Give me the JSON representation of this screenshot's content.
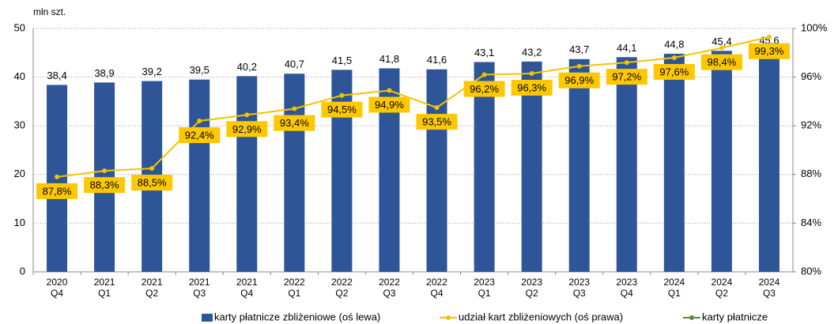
{
  "chart_data": {
    "type": "bar_line",
    "y_label": "mln szt.",
    "categories": [
      "2020 Q4",
      "2021 Q1",
      "2021 Q2",
      "2021 Q3",
      "2021 Q4",
      "2022 Q1",
      "2022 Q2",
      "2022 Q3",
      "2022 Q4",
      "2023 Q1",
      "2023 Q2",
      "2023 Q3",
      "2023 Q4",
      "2024 Q1",
      "2024 Q2",
      "2024 Q3"
    ],
    "ylim": [
      0,
      50
    ],
    "yticks": [
      0,
      10,
      20,
      30,
      40,
      50
    ],
    "y2lim": [
      80,
      100
    ],
    "y2ticks": [
      {
        "value": 80,
        "label": "80%"
      },
      {
        "value": 84,
        "label": "84%"
      },
      {
        "value": 88,
        "label": "88%"
      },
      {
        "value": 92,
        "label": "92%"
      },
      {
        "value": 96,
        "label": "96%"
      },
      {
        "value": 100,
        "label": "100%"
      }
    ],
    "grid": true,
    "series": [
      {
        "name": "karty płatnicze zbliżeniowe (oś lewa)",
        "color": "#2e5597",
        "kind": "bar",
        "values": [
          38.4,
          38.9,
          39.2,
          39.5,
          40.2,
          40.7,
          41.5,
          41.8,
          41.6,
          43.1,
          43.2,
          43.7,
          44.1,
          44.8,
          45.4,
          45.6
        ],
        "value_labels": [
          "38,4",
          "38,9",
          "39,2",
          "39,5",
          "40,2",
          "40,7",
          "41,5",
          "41,8",
          "41,6",
          "43,1",
          "43,2",
          "43,7",
          "44,1",
          "44,8",
          "45,4",
          "45,6"
        ]
      },
      {
        "name": "udział kart zbliżeniowych (oś prawa)",
        "color": "#f5c400",
        "kind": "line",
        "axis": "y2",
        "values": [
          87.8,
          88.3,
          88.5,
          92.4,
          92.9,
          93.4,
          94.5,
          94.9,
          93.5,
          96.2,
          96.3,
          96.9,
          97.2,
          97.6,
          98.4,
          99.3
        ],
        "value_labels": [
          "87,8%",
          "88,3%",
          "88,5%",
          "92,4%",
          "92,9%",
          "93,4%",
          "94,5%",
          "94,9%",
          "93,5%",
          "96,2%",
          "96,3%",
          "96,9%",
          "97,2%",
          "97,6%",
          "98,4%",
          "99,3%"
        ]
      },
      {
        "name": "karty płatnicze",
        "color": "#5a8a3a",
        "kind": "line"
      }
    ]
  }
}
